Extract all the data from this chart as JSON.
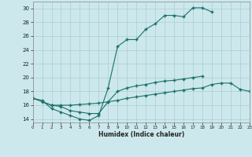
{
  "xlabel": "Humidex (Indice chaleur)",
  "xlim": [
    0,
    23
  ],
  "ylim": [
    13.5,
    31
  ],
  "yticks": [
    14,
    16,
    18,
    20,
    22,
    24,
    26,
    28,
    30
  ],
  "xticks": [
    0,
    1,
    2,
    3,
    4,
    5,
    6,
    7,
    8,
    9,
    10,
    11,
    12,
    13,
    14,
    15,
    16,
    17,
    18,
    19,
    20,
    21,
    22,
    23
  ],
  "background_color": "#cce8ec",
  "grid_color": "#aacdd4",
  "line_color": "#1a7068",
  "line1_x": [
    0,
    1,
    2,
    3,
    4,
    5,
    6,
    7,
    8,
    9,
    10,
    11,
    12,
    13,
    14,
    15,
    16,
    17,
    18,
    19
  ],
  "line1_y": [
    17.0,
    16.7,
    15.5,
    15.0,
    14.5,
    14.0,
    13.8,
    14.5,
    18.5,
    24.5,
    25.5,
    25.5,
    27.0,
    27.8,
    29.0,
    29.0,
    28.8,
    30.1,
    30.1,
    29.5
  ],
  "line2_x": [
    0,
    2,
    3,
    4,
    5,
    6,
    7,
    8,
    9,
    10,
    11,
    12,
    13,
    14,
    15,
    16,
    17,
    18,
    19,
    20,
    21,
    22,
    23
  ],
  "line2_y": [
    17.0,
    16.0,
    16.0,
    16.0,
    16.1,
    16.2,
    16.3,
    16.5,
    16.7,
    17.0,
    17.2,
    17.4,
    17.6,
    17.8,
    18.0,
    18.2,
    18.4,
    18.5,
    19.0,
    19.2,
    19.2,
    18.3,
    18.0
  ],
  "line3_x": [
    1,
    2,
    3,
    4,
    5,
    6,
    7,
    8,
    9,
    10,
    11,
    12,
    13,
    14,
    15,
    16,
    17,
    18
  ],
  "line3_y": [
    16.5,
    16.0,
    15.8,
    15.2,
    15.0,
    14.8,
    14.8,
    16.5,
    18.0,
    18.5,
    18.8,
    19.0,
    19.3,
    19.5,
    19.6,
    19.8,
    20.0,
    20.2
  ],
  "figsize": [
    3.2,
    2.0
  ],
  "dpi": 100
}
